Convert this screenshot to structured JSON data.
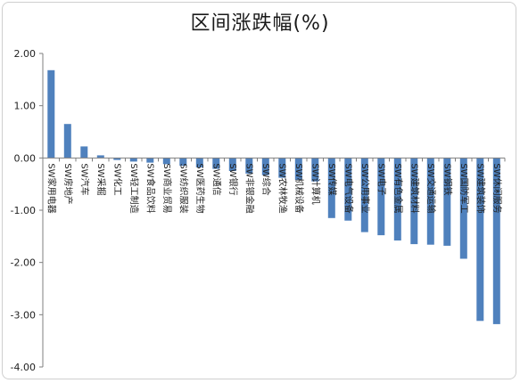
{
  "chart_data": {
    "type": "bar",
    "title": "区间涨跌幅(%)",
    "xlabel": "",
    "ylabel": "",
    "ylim": [
      -4.0,
      2.0
    ],
    "yticks": [
      "2.00",
      "1.00",
      "0.00",
      "-1.00",
      "-2.00",
      "-3.00",
      "-4.00"
    ],
    "grid": false,
    "legend": "none",
    "bar_color": "#4f81bd",
    "categories": [
      "SW家用电器",
      "SW房地产",
      "SW汽车",
      "SW采掘",
      "SW化工",
      "SW轻工制造",
      "SW食品饮料",
      "SW商业贸易",
      "SW纺织服装",
      "SW医药生物",
      "SW通信",
      "SW银行",
      "SW非银金融",
      "SW综合",
      "SW农林牧渔",
      "SW机械设备",
      "SW计算机",
      "SW传媒",
      "SW电气设备",
      "SW公用事业",
      "SW电子",
      "SW有色金属",
      "SW建筑材料",
      "SW交通运输",
      "SW钢铁",
      "SW国防军工",
      "SW建筑装饰",
      "SW休闲服务"
    ],
    "values": [
      1.68,
      0.65,
      0.22,
      0.05,
      -0.04,
      -0.07,
      -0.09,
      -0.12,
      -0.15,
      -0.18,
      -0.21,
      -0.25,
      -0.3,
      -0.33,
      -0.38,
      -0.42,
      -0.45,
      -1.15,
      -1.2,
      -1.42,
      -1.48,
      -1.58,
      -1.65,
      -1.66,
      -1.68,
      -1.93,
      -3.12,
      -3.18
    ]
  }
}
